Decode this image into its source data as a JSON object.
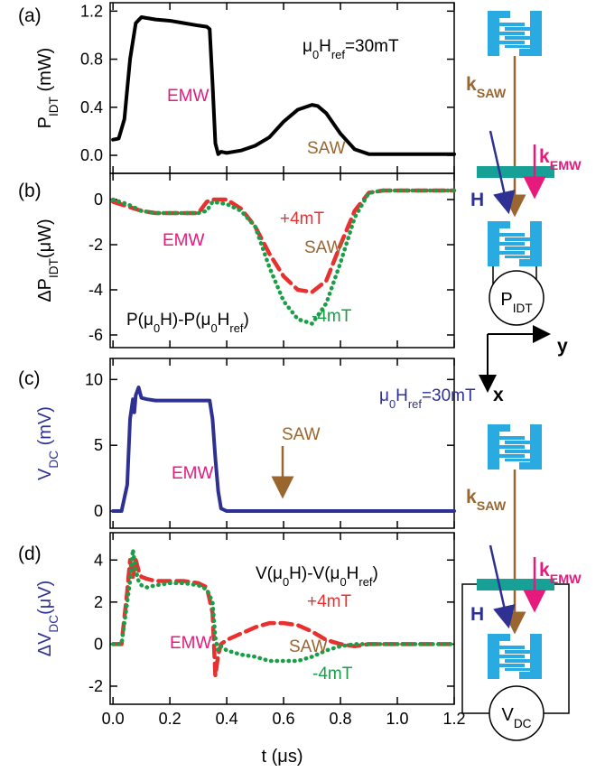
{
  "chart_data": [
    {
      "type": "line",
      "label": "(a)",
      "ylabel": [
        {
          "text": "P"
        },
        {
          "text": "IDT",
          "sub": true
        },
        {
          "text": " (mW)"
        }
      ],
      "ylabel_color": "#000000",
      "xlim": [
        -0.01,
        1.2
      ],
      "ylim": [
        -0.15,
        1.27
      ],
      "yticks": [
        {
          "value": 0,
          "label": "0.0"
        },
        0.4,
        0.8,
        1.2
      ],
      "x": [
        0,
        0.02,
        0.04,
        0.06,
        0.08,
        0.1,
        0.15,
        0.2,
        0.25,
        0.3,
        0.33,
        0.34,
        0.35,
        0.36,
        0.37,
        0.38,
        0.4,
        0.45,
        0.5,
        0.55,
        0.6,
        0.65,
        0.7,
        0.72,
        0.75,
        0.8,
        0.85,
        0.9,
        0.95,
        1.0,
        1.1,
        1.2
      ],
      "series": [
        {
          "color": "#000000",
          "dash": "solid",
          "values": [
            0.13,
            0.14,
            0.3,
            0.8,
            1.1,
            1.15,
            1.13,
            1.12,
            1.1,
            1.08,
            1.07,
            1.05,
            0.6,
            0.1,
            0.01,
            0.03,
            0.02,
            0.04,
            0.08,
            0.15,
            0.28,
            0.38,
            0.42,
            0.41,
            0.35,
            0.18,
            0.05,
            0.01,
            0.01,
            0.01,
            0.01,
            0.01
          ]
        }
      ],
      "annotations": [
        {
          "text": "EMW",
          "color": "#e6197d"
        },
        {
          "text": "SAW",
          "color": "#9a6630"
        },
        {
          "text": [
            {
              "text": "μ"
            },
            {
              "text": "0",
              "sub": true
            },
            {
              "text": "H"
            },
            {
              "text": "ref",
              "sub": true
            },
            {
              "text": "=30mT"
            }
          ],
          "color": "#000000"
        }
      ]
    },
    {
      "type": "line",
      "label": "(b)",
      "ylabel": [
        {
          "text": "ΔP"
        },
        {
          "text": "IDT",
          "sub": true
        },
        {
          "text": "(μW)"
        }
      ],
      "ylabel_color": "#000000",
      "xlim": [
        -0.01,
        1.2
      ],
      "ylim": [
        -6.56,
        1.16
      ],
      "yticks": [
        0,
        -2,
        -4,
        -6
      ],
      "x": [
        0,
        0.05,
        0.1,
        0.15,
        0.2,
        0.25,
        0.3,
        0.33,
        0.35,
        0.4,
        0.45,
        0.5,
        0.55,
        0.6,
        0.65,
        0.7,
        0.75,
        0.8,
        0.85,
        0.9,
        0.95,
        1.0,
        1.1,
        1.2
      ],
      "series": [
        {
          "name": "+4mT",
          "color": "#e8312f",
          "dash": "dashed",
          "values": [
            -0.1,
            -0.3,
            -0.5,
            -0.6,
            -0.6,
            -0.6,
            -0.6,
            -0.1,
            0.0,
            0.0,
            -0.4,
            -1.2,
            -2.4,
            -3.4,
            -4.0,
            -4.1,
            -3.6,
            -2.0,
            -0.5,
            0.3,
            0.4,
            0.4,
            0.4,
            0.4
          ]
        },
        {
          "name": "-4mT",
          "color": "#1a9e48",
          "dash": "dotted",
          "values": [
            0,
            -0.2,
            -0.5,
            -0.6,
            -0.6,
            -0.6,
            -0.6,
            -0.5,
            -0.1,
            -0.2,
            -0.5,
            -1.2,
            -3.0,
            -4.5,
            -5.3,
            -5.5,
            -4.6,
            -2.8,
            -0.8,
            0.3,
            0.4,
            0.4,
            0.4,
            0.4
          ]
        }
      ],
      "annotations": [
        {
          "text": "EMW",
          "color": "#e6197d"
        },
        {
          "text": "SAW",
          "color": "#9a6630"
        },
        {
          "text": [
            {
              "text": "P(μ"
            },
            {
              "text": "0",
              "sub": true
            },
            {
              "text": "H)-P(μ"
            },
            {
              "text": "0",
              "sub": true
            },
            {
              "text": "H"
            },
            {
              "text": "ref",
              "sub": true
            },
            {
              "text": ")"
            }
          ],
          "color": "#000000"
        }
      ]
    },
    {
      "type": "line",
      "label": "(c)",
      "ylabel": [
        {
          "text": "V"
        },
        {
          "text": "DC",
          "sub": true
        },
        {
          "text": " (mV)"
        }
      ],
      "ylabel_color": "#2e3192",
      "xlim": [
        -0.01,
        1.2
      ],
      "ylim": [
        -1.3,
        11.6
      ],
      "yticks": [
        0,
        5,
        10
      ],
      "x": [
        0,
        0.03,
        0.05,
        0.06,
        0.07,
        0.075,
        0.08,
        0.09,
        0.1,
        0.12,
        0.15,
        0.2,
        0.25,
        0.3,
        0.34,
        0.35,
        0.36,
        0.37,
        0.38,
        0.4,
        0.5,
        0.6,
        0.8,
        1.0,
        1.2
      ],
      "series": [
        {
          "color": "#2e3192",
          "dash": "solid",
          "values": [
            0,
            0,
            2,
            7,
            8.5,
            7.5,
            8.8,
            9.4,
            8.6,
            8.5,
            8.4,
            8.4,
            8.4,
            8.4,
            8.4,
            7,
            4,
            1.5,
            0.2,
            0,
            0,
            0,
            0,
            0,
            0
          ]
        }
      ],
      "annotations": [
        {
          "text": "EMW",
          "color": "#e6197d"
        },
        {
          "text": "SAW",
          "color": "#9a6630"
        },
        {
          "text": [
            {
              "text": "μ"
            },
            {
              "text": "0",
              "sub": true
            },
            {
              "text": "H"
            },
            {
              "text": "ref",
              "sub": true
            },
            {
              "text": "=30mT"
            }
          ],
          "color": "#2e3192"
        }
      ]
    },
    {
      "type": "line",
      "label": "(d)",
      "ylabel": [
        {
          "text": "ΔV"
        },
        {
          "text": "DC",
          "sub": true
        },
        {
          "text": "(μV)"
        }
      ],
      "ylabel_color": "#2e3192",
      "xlabel": "t (μs)",
      "xlim": [
        -0.01,
        1.2
      ],
      "ylim": [
        -2.86,
        5.3
      ],
      "xticks": [
        {
          "value": 0,
          "label": "0.0"
        },
        0.2,
        0.4,
        0.6,
        0.8,
        {
          "value": 1,
          "label": "1.0"
        },
        1.2
      ],
      "yticks": [
        -2,
        0,
        2,
        4
      ],
      "x": [
        0,
        0.03,
        0.05,
        0.06,
        0.07,
        0.08,
        0.09,
        0.1,
        0.12,
        0.15,
        0.2,
        0.25,
        0.3,
        0.33,
        0.35,
        0.36,
        0.37,
        0.38,
        0.4,
        0.45,
        0.5,
        0.55,
        0.6,
        0.65,
        0.7,
        0.75,
        0.8,
        0.85,
        0.9,
        1.0,
        1.1,
        1.2
      ],
      "series": [
        {
          "name": "+4mT",
          "color": "#e8312f",
          "dash": "dashed",
          "values": [
            0,
            0,
            2.5,
            4,
            3.2,
            4,
            3.5,
            3.2,
            3.1,
            3.0,
            3.0,
            3.0,
            2.9,
            2.7,
            1.5,
            -1.5,
            -0.5,
            0.0,
            0.2,
            0.5,
            0.8,
            1.0,
            1.0,
            0.9,
            0.6,
            0.2,
            0.0,
            -0.1,
            0,
            0,
            0,
            0
          ]
        },
        {
          "name": "-4mT",
          "color": "#1a9e48",
          "dash": "dotted",
          "values": [
            0,
            0,
            2,
            3,
            4.5,
            3.5,
            3,
            2.8,
            2.7,
            2.8,
            2.9,
            2.9,
            2.8,
            2.6,
            2.0,
            0.3,
            -0.3,
            -0.1,
            -0.3,
            -0.5,
            -0.6,
            -0.8,
            -0.8,
            -0.8,
            -0.6,
            -0.3,
            -0.1,
            0,
            0,
            0,
            0,
            0
          ]
        }
      ],
      "annotations": [
        {
          "text": "EMW",
          "color": "#e6197d"
        },
        {
          "text": "SAW",
          "color": "#9a6630"
        },
        {
          "text": [
            {
              "text": "V(μ"
            },
            {
              "text": "0",
              "sub": true
            },
            {
              "text": "H)-V(μ"
            },
            {
              "text": "0",
              "sub": true
            },
            {
              "text": "H"
            },
            {
              "text": "ref",
              "sub": true
            },
            {
              "text": ")"
            }
          ],
          "color": "#000000"
        }
      ]
    }
  ],
  "diagram": {
    "top": {
      "k_saw": [
        {
          "text": "k"
        },
        {
          "text": "SAW",
          "sub": true
        }
      ],
      "k_emw": [
        {
          "text": "k"
        },
        {
          "text": "EMW",
          "sub": true
        }
      ],
      "h": "H",
      "p_idt": [
        {
          "text": "P"
        },
        {
          "text": "IDT",
          "sub": true
        }
      ]
    },
    "axes": {
      "y": "y",
      "x": "x"
    },
    "bottom": {
      "k_saw": [
        {
          "text": "k"
        },
        {
          "text": "SAW",
          "sub": true
        }
      ],
      "k_emw": [
        {
          "text": "k"
        },
        {
          "text": "EMW",
          "sub": true
        }
      ],
      "h": "H",
      "v_dc": [
        {
          "text": "V"
        },
        {
          "text": "DC",
          "sub": true
        }
      ]
    }
  }
}
